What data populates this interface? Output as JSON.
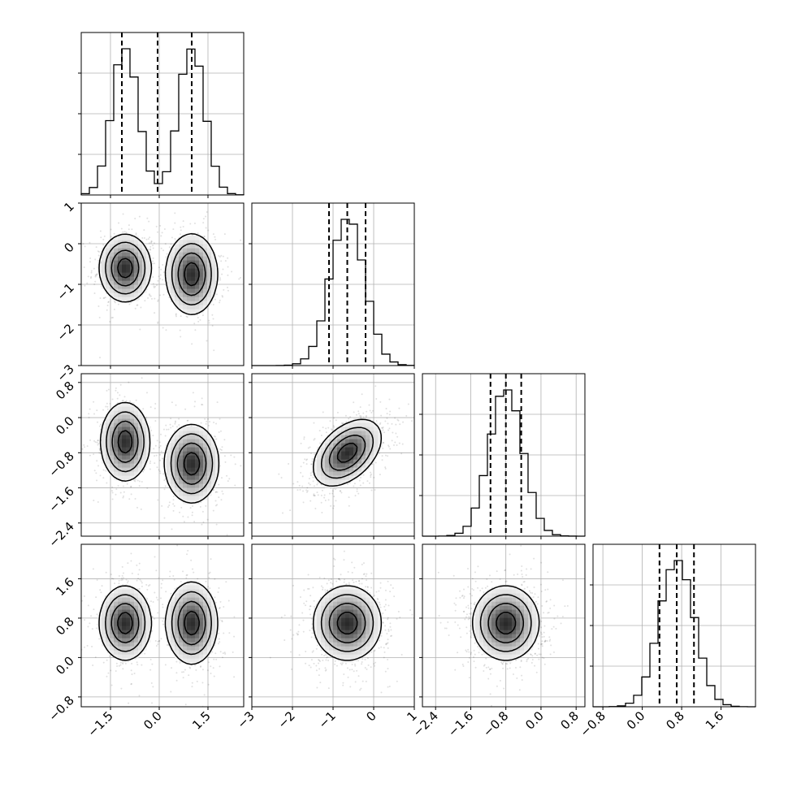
{
  "chart_data": {
    "type": "corner",
    "grid": true,
    "colors": {
      "line": "#000000",
      "grid": "#b0b0b0",
      "points": "#000000",
      "density": "#000000"
    },
    "params": [
      {
        "range": [
          -2.4,
          2.6
        ],
        "ticks": [
          -1.5,
          0.0,
          1.5
        ],
        "tick_labels": [
          "−1.5",
          "0.0",
          "1.5"
        ],
        "quantiles": [
          -1.15,
          -0.05,
          1.0
        ],
        "modes": [
          {
            "mean": -1.05,
            "sd": 0.4,
            "w": 0.5
          },
          {
            "mean": 1.0,
            "sd": 0.4,
            "w": 0.5
          }
        ]
      },
      {
        "range": [
          -3.0,
          1.0
        ],
        "ticks": [
          -3,
          -2,
          -1,
          0,
          1
        ],
        "tick_labels": [
          "−3",
          "−2",
          "−1",
          "0",
          "1"
        ],
        "quantiles": [
          -1.1,
          -0.65,
          -0.2
        ],
        "modes": [
          {
            "mean": -0.65,
            "sd": 0.42,
            "w": 1.0
          }
        ]
      },
      {
        "range": [
          -2.7,
          1.0
        ],
        "ticks": [
          -2.4,
          -1.6,
          -0.8,
          0.0,
          0.8
        ],
        "tick_labels": [
          "−2.4",
          "−1.6",
          "−0.8",
          "0.0",
          "0.8"
        ],
        "quantiles": [
          -1.15,
          -0.8,
          -0.45
        ],
        "modes": [
          {
            "mean": -0.8,
            "sd": 0.38,
            "w": 1.0
          }
        ]
      },
      {
        "range": [
          -1.0,
          2.3
        ],
        "ticks": [
          -0.8,
          0.0,
          0.8,
          1.6
        ],
        "tick_labels": [
          "−0.8",
          "0.0",
          "0.8",
          "1.6"
        ],
        "quantiles": [
          0.35,
          0.7,
          1.05
        ],
        "modes": [
          {
            "mean": 0.7,
            "sd": 0.35,
            "w": 1.0
          }
        ]
      }
    ],
    "pairs": [
      {
        "row": 1,
        "col": 0,
        "clusters": [
          {
            "cx": -1.05,
            "cy": -0.6,
            "sx": 0.4,
            "sy": 0.42,
            "rho": 0.0,
            "w": 0.5
          },
          {
            "cx": 1.0,
            "cy": -0.75,
            "sx": 0.4,
            "sy": 0.5,
            "rho": 0.0,
            "w": 0.5
          }
        ]
      },
      {
        "row": 2,
        "col": 0,
        "clusters": [
          {
            "cx": -1.05,
            "cy": -0.55,
            "sx": 0.38,
            "sy": 0.45,
            "rho": 0.0,
            "w": 0.5
          },
          {
            "cx": 1.0,
            "cy": -1.05,
            "sx": 0.42,
            "sy": 0.45,
            "rho": 0.0,
            "w": 0.5
          }
        ]
      },
      {
        "row": 2,
        "col": 1,
        "clusters": [
          {
            "cx": -0.65,
            "cy": -0.8,
            "sx": 0.42,
            "sy": 0.38,
            "rho": 0.45,
            "w": 1.0
          }
        ]
      },
      {
        "row": 3,
        "col": 0,
        "clusters": [
          {
            "cx": -1.05,
            "cy": 0.7,
            "sx": 0.4,
            "sy": 0.38,
            "rho": 0.0,
            "w": 0.5
          },
          {
            "cx": 1.0,
            "cy": 0.7,
            "sx": 0.4,
            "sy": 0.42,
            "rho": 0.0,
            "w": 0.5
          }
        ]
      },
      {
        "row": 3,
        "col": 1,
        "clusters": [
          {
            "cx": -0.65,
            "cy": 0.7,
            "sx": 0.42,
            "sy": 0.38,
            "rho": 0.0,
            "w": 1.0
          }
        ]
      },
      {
        "row": 3,
        "col": 2,
        "clusters": [
          {
            "cx": -0.8,
            "cy": 0.7,
            "sx": 0.38,
            "sy": 0.38,
            "rho": 0.0,
            "w": 1.0
          }
        ]
      }
    ]
  }
}
